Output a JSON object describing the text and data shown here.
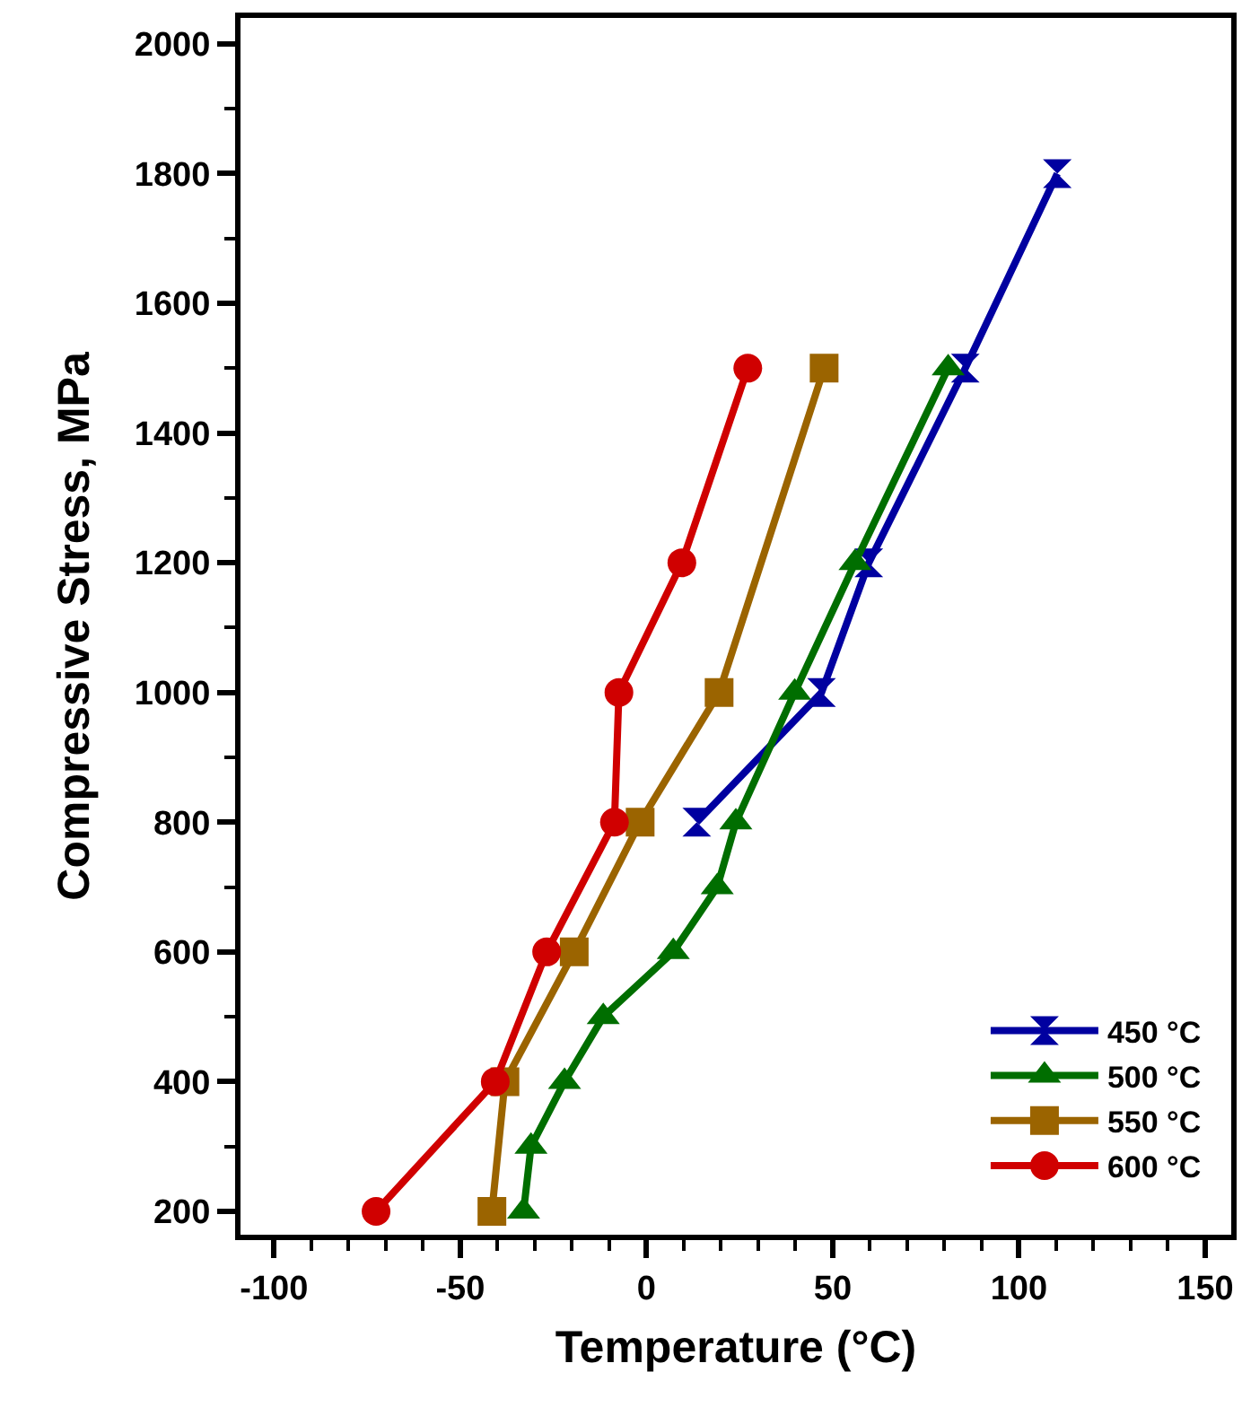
{
  "chart_data": {
    "type": "line",
    "xlabel": "Temperature (°C)",
    "ylabel": "Compressive Stress, MPa",
    "xlim": [
      -109,
      157
    ],
    "xticks": [
      -100,
      -50,
      0,
      50,
      100,
      150
    ],
    "ylim": [
      164,
      2040
    ],
    "yticks": [
      200,
      400,
      600,
      800,
      1000,
      1200,
      1400,
      1600,
      1800,
      2000
    ],
    "grid": false,
    "legend": "bottom right",
    "line_style": "solid",
    "series": [
      {
        "name": "450 °C",
        "color": "#0000a0",
        "x": [
          13.5,
          47,
          59.7,
          85.6,
          110.3
        ],
        "values": [
          800,
          1000,
          1200,
          1500,
          1800
        ]
      },
      {
        "name": "500 °C",
        "color": "#006e00",
        "marker": "triangle",
        "x": [
          -33,
          -31,
          -22,
          -11.6,
          7.2,
          19,
          24,
          39.8,
          56,
          81
        ],
        "values": [
          200,
          300,
          400,
          500,
          600,
          700,
          800,
          1000,
          1200,
          1500
        ]
      },
      {
        "name": "550 °C",
        "color": "#9b6400",
        "marker": "square",
        "x": [
          -41.5,
          -38,
          -19.4,
          -1.7,
          19.5,
          47.7
        ],
        "values": [
          200,
          400,
          600,
          800,
          1000,
          1500
        ]
      },
      {
        "name": "600 °C",
        "color": "#d00000",
        "marker": "circle",
        "x": [
          -72.6,
          -40.6,
          -26.8,
          -8.6,
          -7.4,
          9.5,
          27.2
        ],
        "values": [
          200,
          400,
          600,
          800,
          1000,
          1200,
          1500
        ]
      }
    ]
  }
}
